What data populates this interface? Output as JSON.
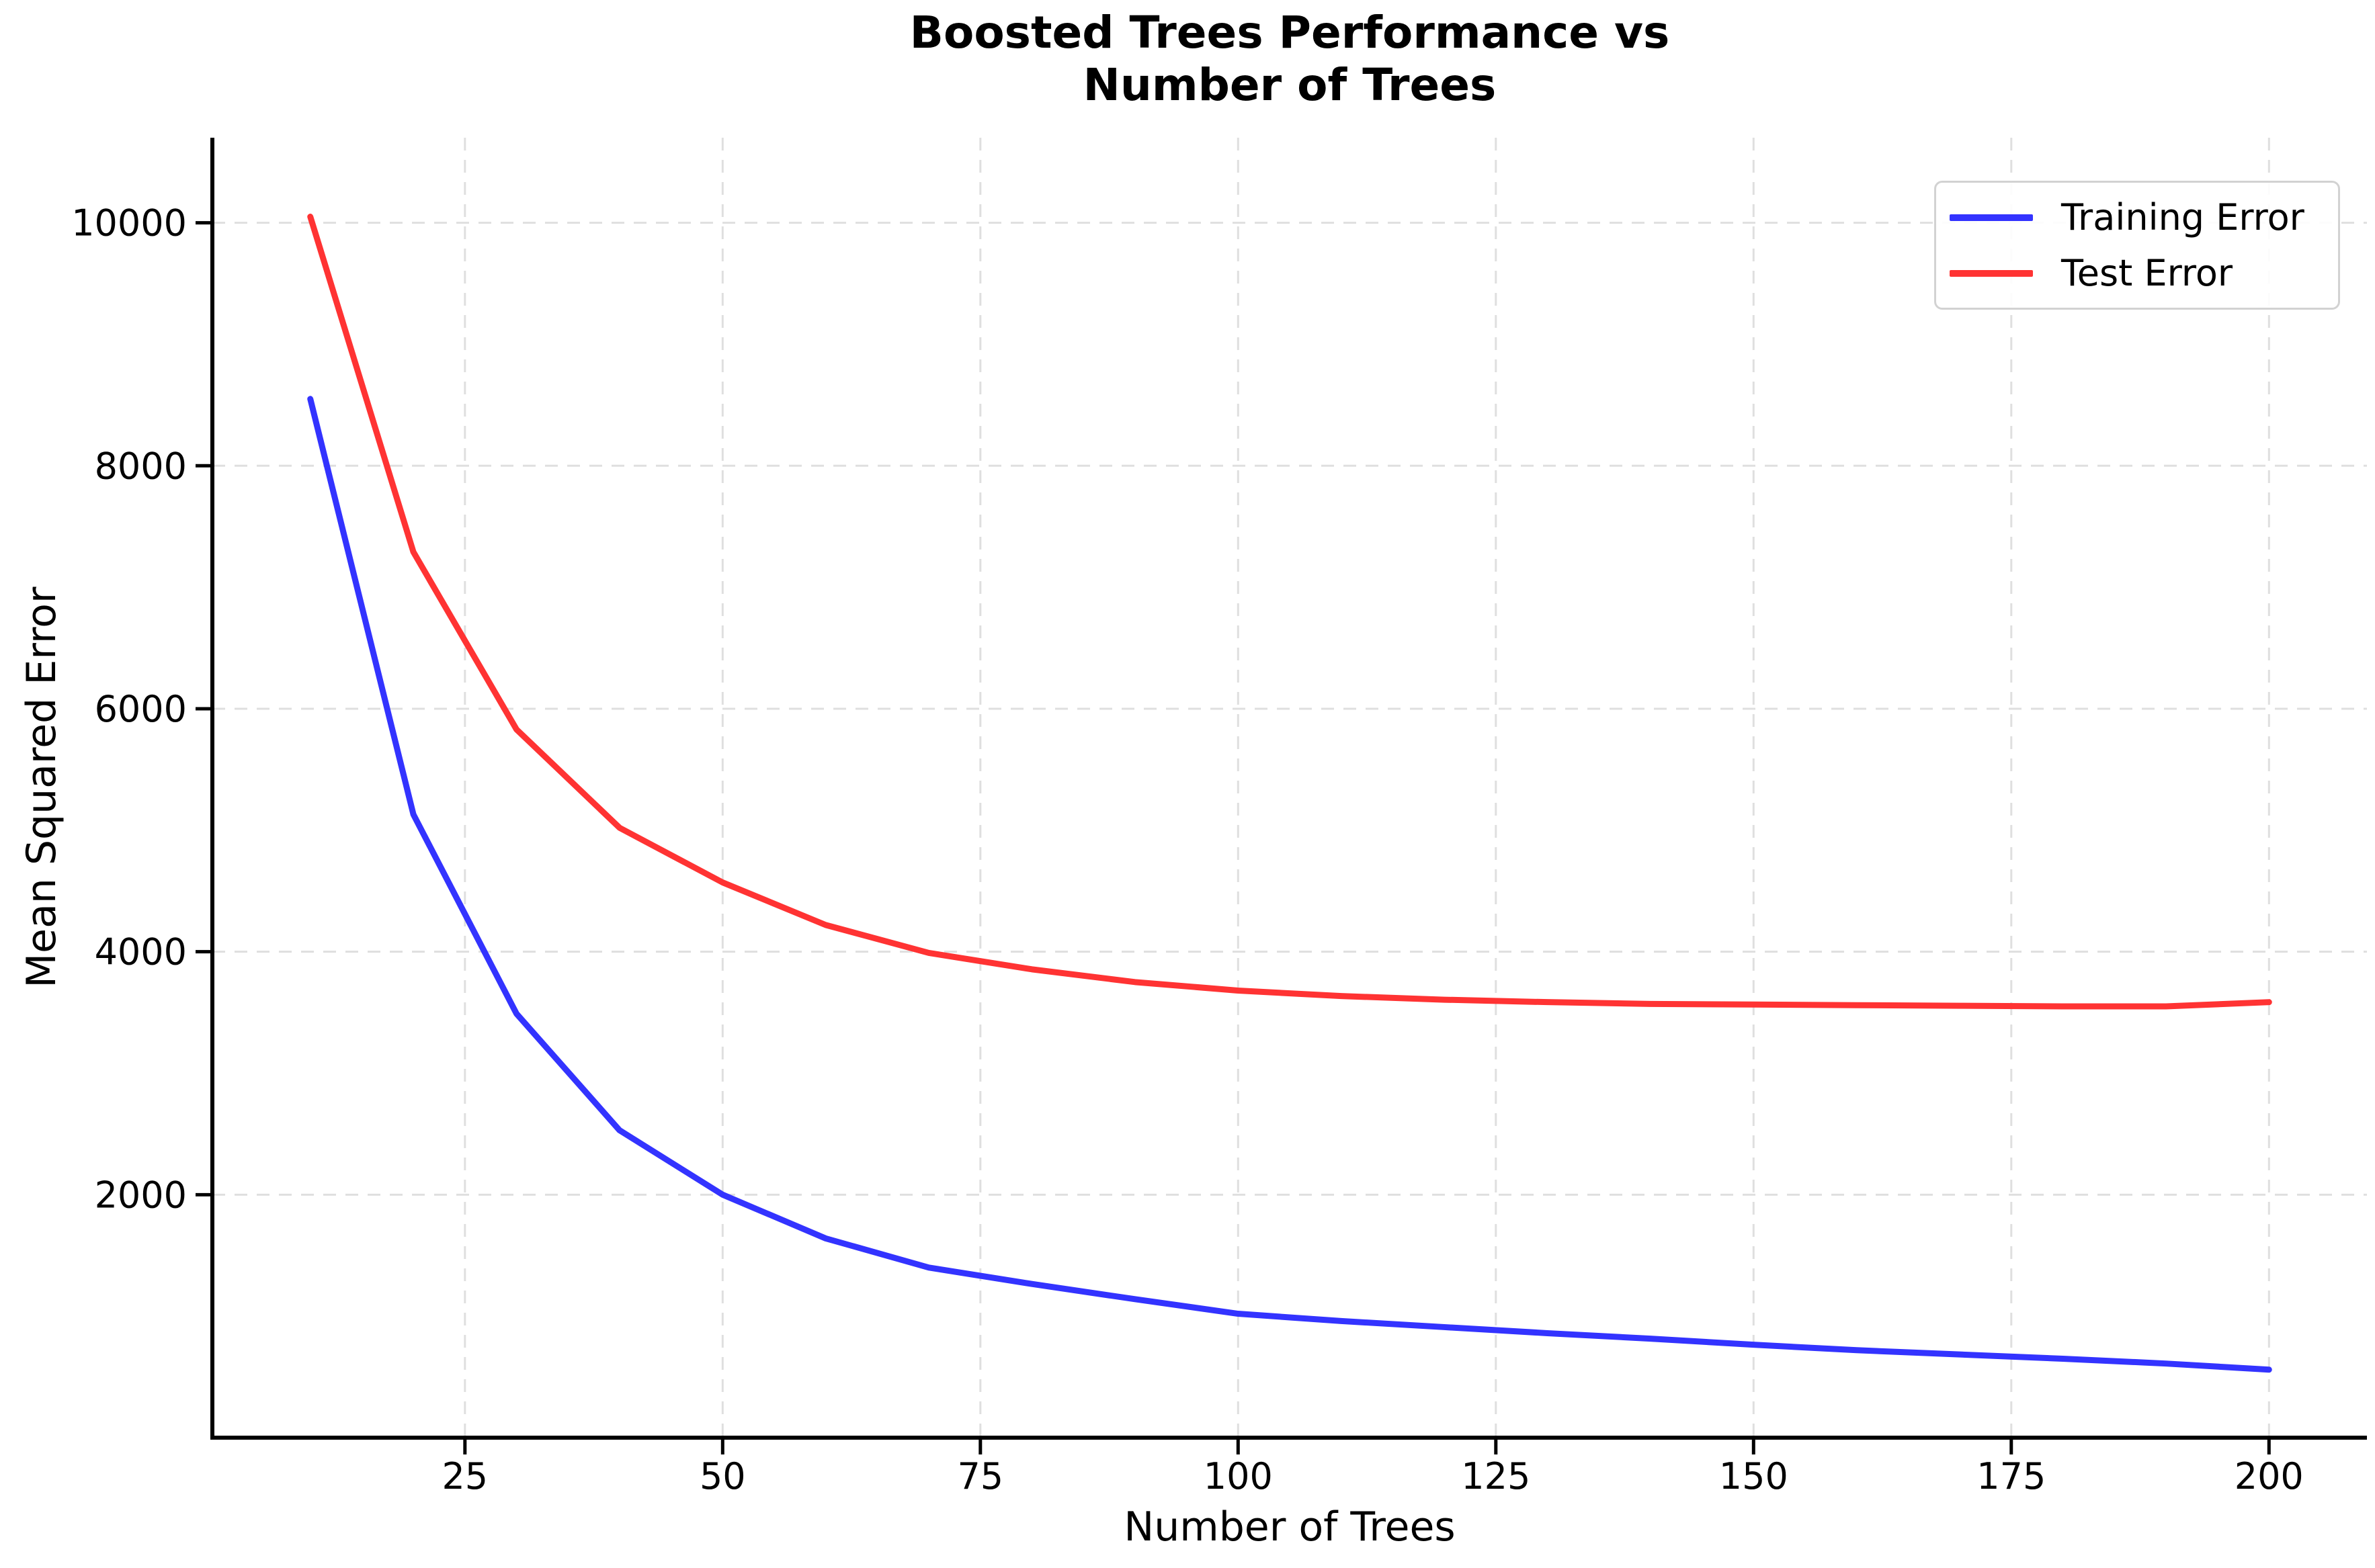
{
  "title": {
    "line1": "Boosted Trees Performance vs",
    "line2": "Number of Trees"
  },
  "chart_data": {
    "type": "line",
    "title": "Boosted Trees Performance vs Number of Trees",
    "xlabel": "Number of Trees",
    "ylabel": "Mean Squared Error",
    "x": [
      10,
      20,
      30,
      40,
      50,
      60,
      70,
      80,
      90,
      100,
      110,
      120,
      130,
      140,
      150,
      160,
      170,
      180,
      190,
      200
    ],
    "series": [
      {
        "name": "Training Error",
        "color": "#3333ff",
        "values": [
          8550,
          5130,
          3490,
          2530,
          2000,
          1640,
          1400,
          1265,
          1140,
          1020,
          960,
          910,
          860,
          815,
          765,
          720,
          685,
          650,
          610,
          560
        ]
      },
      {
        "name": "Test Error",
        "color": "#ff3333",
        "values": [
          10050,
          7290,
          5830,
          5020,
          4570,
          4220,
          3990,
          3855,
          3750,
          3680,
          3635,
          3605,
          3585,
          3570,
          3565,
          3560,
          3555,
          3550,
          3550,
          3585
        ]
      }
    ],
    "xticks": [
      25,
      50,
      75,
      100,
      125,
      150,
      175,
      200
    ],
    "yticks": [
      2000,
      4000,
      6000,
      8000,
      10000
    ],
    "xlim": [
      0.5,
      209.5
    ],
    "ylim": [
      0,
      10700
    ],
    "grid": true,
    "grid_style": "dashed",
    "legend_position": "upper right"
  },
  "legend": {
    "items": [
      {
        "label": "Training Error",
        "color": "#3333ff"
      },
      {
        "label": "Test Error",
        "color": "#ff3333"
      }
    ]
  },
  "colors": {
    "background": "#ffffff",
    "grid": "#dfdfdf",
    "spine": "#000000",
    "tick": "#000000",
    "text": "#000000",
    "legend_border": "#d2d2d2",
    "training_line": "#3333ff",
    "test_line": "#ff3333"
  }
}
